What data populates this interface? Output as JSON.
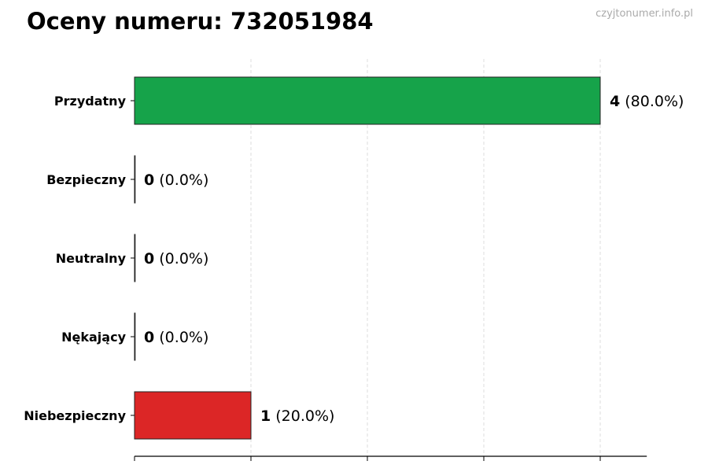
{
  "title": "Oceny numeru: 732051984",
  "watermark": "czyjtonumer.info.pl",
  "chart_data": {
    "type": "bar",
    "orientation": "horizontal",
    "title": "Oceny numeru: 732051984",
    "categories": [
      "Przydatny",
      "Bezpieczny",
      "Neutralny",
      "Nękający",
      "Niebezpieczny"
    ],
    "values": [
      4,
      0,
      0,
      0,
      1
    ],
    "percent_labels": [
      "(80.0%)",
      "(0.0%)",
      "(0.0%)",
      "(0.0%)",
      "(20.0%)"
    ],
    "colors": [
      "#16a34a",
      "#16a34a",
      "#9ca3af",
      "#dc2626",
      "#dc2626"
    ],
    "xlim": [
      0,
      4.4
    ],
    "xticks": [
      0,
      1,
      2,
      3,
      4
    ],
    "xtick_labels_shown": false,
    "grid": "x-dashed",
    "xlabel": "",
    "ylabel": ""
  }
}
